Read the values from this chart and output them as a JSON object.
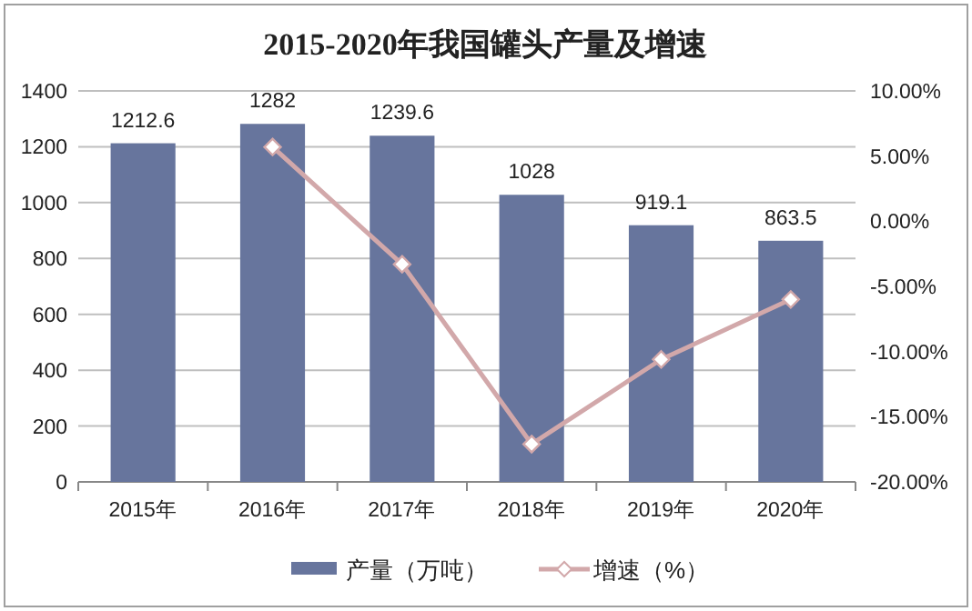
{
  "chart_data": {
    "type": "bar",
    "title": "2015-2020年我国罐头产量及增速",
    "categories": [
      "2015年",
      "2016年",
      "2017年",
      "2018年",
      "2019年",
      "2020年"
    ],
    "series": [
      {
        "name": "产量（万吨）",
        "color": "#67759d",
        "values": [
          1212.6,
          1282,
          1239.6,
          1028,
          919.1,
          863.5
        ],
        "data_labels": true
      },
      {
        "name": "增速（%）",
        "type": "line",
        "axis": "y2",
        "color": "#d2a8aa",
        "marker": "diamond",
        "values": [
          null,
          5.7,
          -3.3,
          -17.1,
          -10.6,
          -6.0
        ]
      }
    ],
    "ylim": [
      0,
      1400
    ],
    "yticks": [
      0,
      200,
      400,
      600,
      800,
      1000,
      1200,
      1400
    ],
    "y2lim": [
      -20,
      10
    ],
    "y2ticks": [
      {
        "value": -20,
        "label": "-20.00%"
      },
      {
        "value": -15,
        "label": "-15.00%"
      },
      {
        "value": -10,
        "label": "-10.00%"
      },
      {
        "value": -5,
        "label": "-5.00%"
      },
      {
        "value": 0,
        "label": "0.00%"
      },
      {
        "value": 5,
        "label": "5.00%"
      },
      {
        "value": 10,
        "label": "10.00%"
      }
    ],
    "grid": "y",
    "legend": "bottom"
  }
}
